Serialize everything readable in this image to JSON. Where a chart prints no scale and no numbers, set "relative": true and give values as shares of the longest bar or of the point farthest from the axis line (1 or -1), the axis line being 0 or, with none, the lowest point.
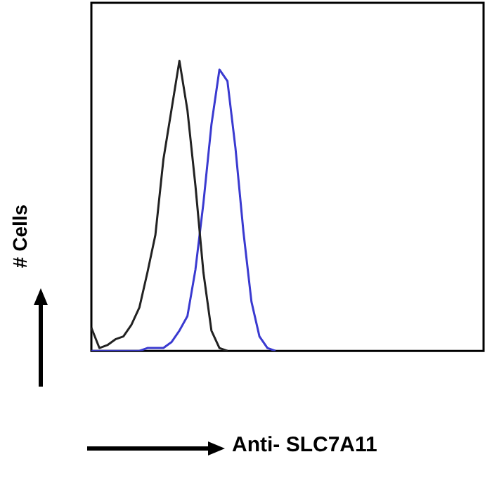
{
  "chart_data": {
    "type": "line",
    "relative": true,
    "xlabel": "Anti- SLC7A11",
    "ylabel": "# Cells",
    "legend": false,
    "grid": false,
    "marker": "none",
    "line_style": "solid",
    "categories": [
      null,
      null,
      null,
      null,
      null,
      null,
      null,
      null,
      null,
      null,
      null,
      null,
      null,
      null,
      null,
      null,
      null,
      null,
      null,
      null,
      null,
      null,
      null,
      null,
      null,
      null,
      null,
      null,
      null,
      null,
      null,
      null,
      null,
      null,
      null,
      null,
      null,
      null,
      null,
      null,
      null,
      null,
      null,
      null,
      null,
      null,
      null,
      null,
      null,
      null
    ],
    "series": [
      {
        "color": "#222222",
        "values": [
          0.08,
          0.01,
          0.02,
          0.04,
          0.05,
          0.09,
          0.15,
          0.27,
          0.4,
          0.66,
          0.83,
          1,
          0.83,
          0.57,
          0.27,
          0.07,
          0.01,
          0,
          null,
          null,
          null,
          null,
          null,
          null,
          null,
          null,
          null,
          null,
          null,
          null,
          null,
          null,
          null,
          null,
          null,
          null,
          null,
          null,
          null,
          null,
          null,
          null,
          null,
          null,
          null,
          null,
          null,
          null,
          null,
          null
        ]
      },
      {
        "color": "#3a3ad0",
        "values": [
          0,
          0,
          0,
          0,
          0,
          0,
          0,
          0.01,
          0.01,
          0.01,
          0.03,
          0.07,
          0.12,
          0.28,
          0.51,
          0.78,
          0.97,
          0.93,
          0.7,
          0.41,
          0.17,
          0.05,
          0.01,
          0,
          null,
          null,
          null,
          null,
          null,
          null,
          null,
          null,
          null,
          null,
          null,
          null,
          null,
          null,
          null,
          null,
          null,
          null,
          null,
          null,
          null,
          null,
          null,
          null,
          null,
          null
        ]
      }
    ]
  }
}
